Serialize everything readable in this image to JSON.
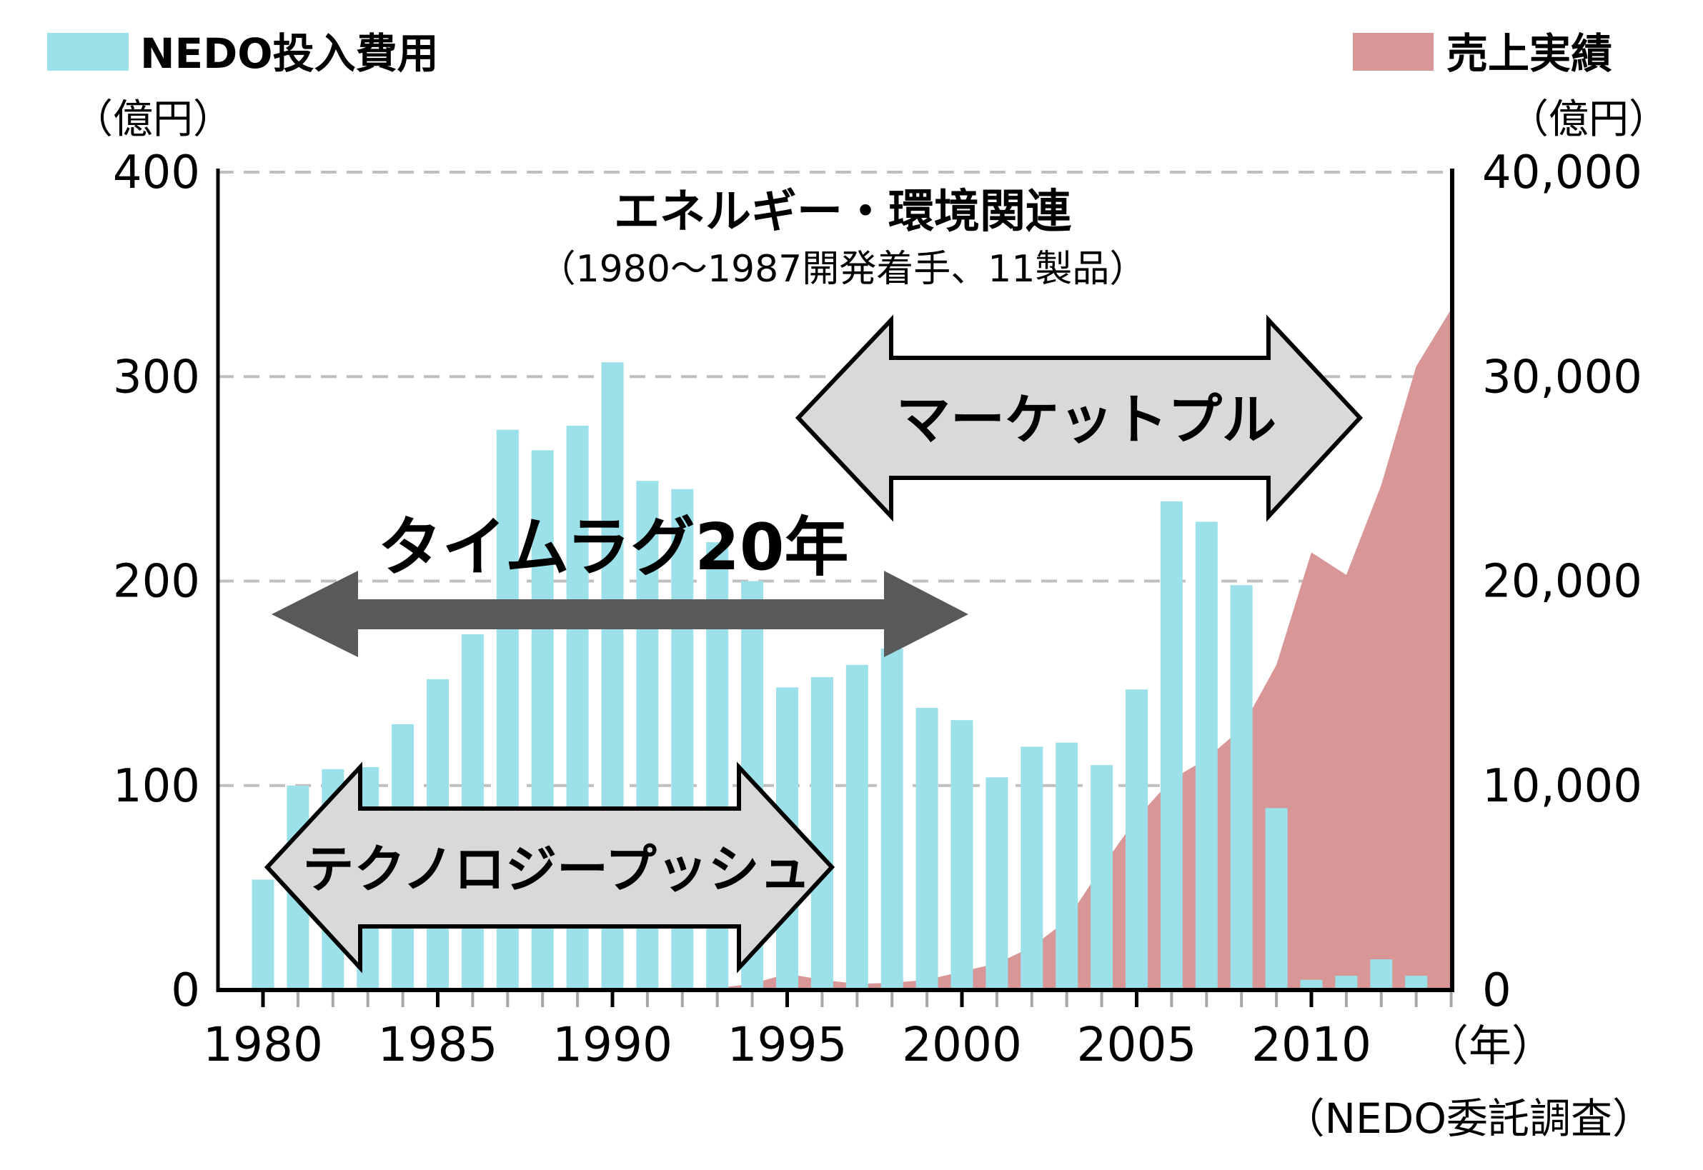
{
  "legend": {
    "left": {
      "label": "NEDO投入費用",
      "unit": "（億円）",
      "color": "#9ce0ea"
    },
    "right": {
      "label": "売上実績",
      "unit": "（億円）",
      "color": "#d99696"
    }
  },
  "annotations": {
    "title": "エネルギー・環境関連",
    "subtitle": "（1980～1987開発着手、11製品）",
    "market_pull": "マーケットプル",
    "time_lag": "タイムラグ20年",
    "technology_push": "テクノロジープッシュ",
    "x_unit": "（年）",
    "source": "（NEDO委託調査）"
  },
  "colors": {
    "arrow_fill": "#d9d9d9",
    "timelag_arrow": "#595959",
    "grid": "#bfbfbf",
    "axis": "#000000"
  },
  "chart_data": {
    "type": "bar+area",
    "x_tick_labels": [
      "1980",
      "1985",
      "1990",
      "1995",
      "2000",
      "2005",
      "2010"
    ],
    "y_left": {
      "range": [
        0,
        400
      ],
      "ticks": [
        "0",
        "100",
        "200",
        "300",
        "400"
      ]
    },
    "y_right": {
      "range": [
        0,
        40000
      ],
      "ticks": [
        "0",
        "10,000",
        "20,000",
        "30,000",
        "40,000"
      ]
    },
    "grid": "horizontal dashed",
    "series": [
      {
        "name": "NEDO投入費用",
        "type": "bar",
        "axis": "left",
        "x": [
          1980,
          1981,
          1982,
          1983,
          1984,
          1985,
          1986,
          1987,
          1988,
          1989,
          1990,
          1991,
          1992,
          1993,
          1994,
          1995,
          1996,
          1997,
          1998,
          1999,
          2000,
          2001,
          2002,
          2003,
          2004,
          2005,
          2006,
          2007,
          2008,
          2009,
          2010,
          2011,
          2012,
          2013
        ],
        "values": [
          54,
          100,
          108,
          109,
          130,
          152,
          174,
          274,
          264,
          276,
          307,
          249,
          245,
          219,
          200,
          148,
          153,
          159,
          167,
          138,
          132,
          104,
          119,
          121,
          110,
          147,
          239,
          229,
          198,
          89,
          5,
          7,
          15,
          7
        ]
      },
      {
        "name": "売上実績",
        "type": "area",
        "axis": "right",
        "x": [
          1992,
          1993,
          1994,
          1995,
          1996,
          1997,
          1998,
          1999,
          2000,
          2001,
          2002,
          2003,
          2004,
          2005,
          2006,
          2007,
          2008,
          2009,
          2010,
          2011,
          2012,
          2013,
          2014
        ],
        "values": [
          0,
          100,
          300,
          800,
          500,
          300,
          350,
          500,
          900,
          1300,
          2100,
          3400,
          6000,
          8400,
          10300,
          11300,
          12800,
          15900,
          21400,
          20300,
          24700,
          30500,
          33300
        ]
      }
    ]
  }
}
